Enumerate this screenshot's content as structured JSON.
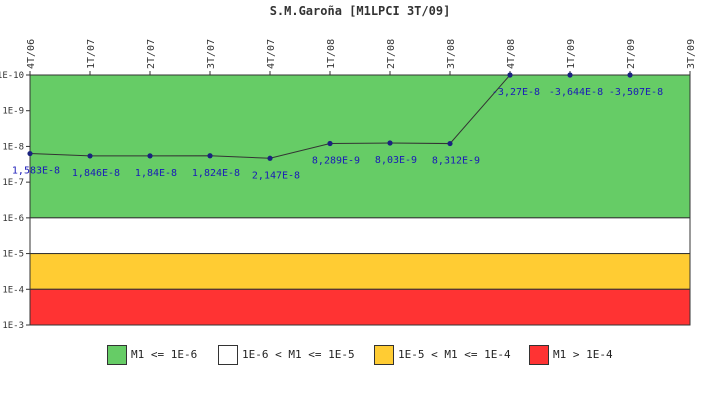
{
  "chart_data": {
    "type": "line",
    "title": "S.M.Garoña [M1LPCI 3T/09]",
    "xlabel": "",
    "ylabel": "",
    "y_scale": "log",
    "y_axis_direction": "descending",
    "ylim": [
      1e-10,
      0.001
    ],
    "grid": false,
    "legend_position": "bottom",
    "x": [
      "4T/06",
      "1T/07",
      "2T/07",
      "3T/07",
      "4T/07",
      "1T/08",
      "2T/08",
      "3T/08",
      "4T/08",
      "1T/09",
      "2T/09",
      "3T/09"
    ],
    "y_ticks": [
      {
        "value": 1e-10,
        "label": "1E-10"
      },
      {
        "value": 1e-09,
        "label": "1E-9"
      },
      {
        "value": 1e-08,
        "label": "1E-8"
      },
      {
        "value": 1e-07,
        "label": "1E-7"
      },
      {
        "value": 1e-06,
        "label": "1E-6"
      },
      {
        "value": 1e-05,
        "label": "1E-5"
      },
      {
        "value": 0.0001,
        "label": "1E-4"
      },
      {
        "value": 0.001,
        "label": "1E-3"
      }
    ],
    "series": [
      {
        "color": "#1a237e",
        "points": [
          {
            "x": "4T/06",
            "y": 1.583e-08,
            "label": "1,583E-8"
          },
          {
            "x": "1T/07",
            "y": 1.846e-08,
            "label": "1,846E-8"
          },
          {
            "x": "2T/07",
            "y": 1.84e-08,
            "label": "1,84E-8"
          },
          {
            "x": "3T/07",
            "y": 1.824e-08,
            "label": "1,824E-8"
          },
          {
            "x": "4T/07",
            "y": 2.147e-08,
            "label": "2,147E-8"
          },
          {
            "x": "1T/08",
            "y": 8.289e-09,
            "label": "8,289E-9"
          },
          {
            "x": "2T/08",
            "y": 8.03e-09,
            "label": "8,03E-9"
          },
          {
            "x": "3T/08",
            "y": 8.312e-09,
            "label": "8,312E-9"
          },
          {
            "x": "4T/08",
            "y": 1e-10,
            "label": "-3,27E-8"
          },
          {
            "x": "1T/09",
            "y": 1e-10,
            "label": "-3,644E-8"
          },
          {
            "x": "2T/09",
            "y": 1e-10,
            "label": "-3,507E-8"
          }
        ]
      }
    ],
    "bands": [
      {
        "from": 1e-10,
        "to": 1e-06,
        "color": "#66cc66",
        "legend": "M1 <= 1E-6"
      },
      {
        "from": 1e-06,
        "to": 1e-05,
        "color": "#ffffff",
        "legend": "1E-6 < M1 <= 1E-5"
      },
      {
        "from": 1e-05,
        "to": 0.0001,
        "color": "#ffcc33",
        "legend": "1E-5 < M1 <= 1E-4"
      },
      {
        "from": 0.0001,
        "to": 0.001,
        "color": "#ff3333",
        "legend": "M1 > 1E-4"
      }
    ]
  }
}
